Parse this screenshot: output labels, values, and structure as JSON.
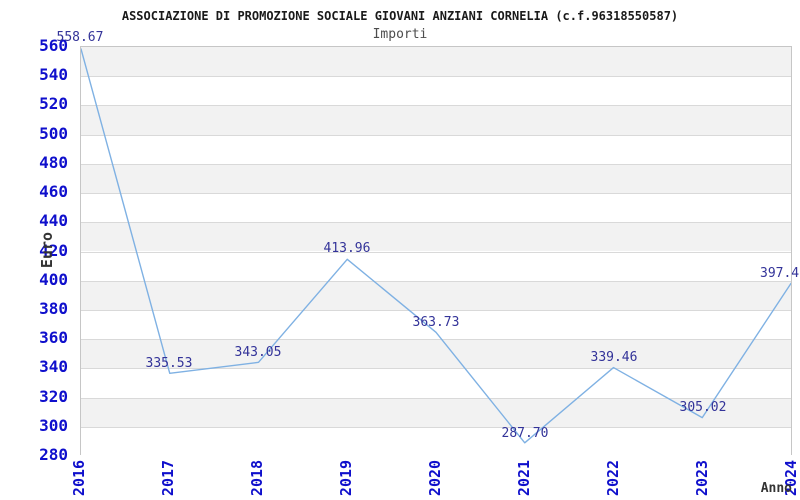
{
  "title": "ASSOCIAZIONE DI PROMOZIONE SOCIALE GIOVANI ANZIANI CORNELIA (c.f.96318550587)",
  "subtitle": "Importi",
  "chart_data": {
    "type": "line",
    "x": [
      2016,
      2017,
      2018,
      2019,
      2020,
      2021,
      2022,
      2023,
      2024
    ],
    "values": [
      558.67,
      335.53,
      343.05,
      413.96,
      363.73,
      287.7,
      339.46,
      305.02,
      397.4
    ],
    "point_labels": [
      "558.67",
      "335.53",
      "343.05",
      "413.96",
      "363.73",
      "287.70",
      "339.46",
      "305.02",
      "397.4"
    ],
    "series_name": "Importi",
    "xlabel": "Anno",
    "ylabel": "Euro",
    "ylim": [
      280,
      560
    ],
    "ytick_step": 20,
    "yticks": [
      280,
      300,
      320,
      340,
      360,
      380,
      400,
      420,
      440,
      460,
      480,
      500,
      520,
      540,
      560
    ],
    "grid": "horizontal alternating bands, gray band at top",
    "legend": "none",
    "markers": "none"
  },
  "colors": {
    "line": "#7fb1e3",
    "tick_label": "#0f0fcc",
    "point_label": "#333399",
    "band_gray": "#f2f2f2",
    "band_white": "#ffffff",
    "grid_line": "#d9d9d9",
    "plot_border": "#c6c6c6",
    "title_text": "#1a1a1a",
    "subtitle_text": "#4d4d4d",
    "axis_title": "#333333"
  }
}
